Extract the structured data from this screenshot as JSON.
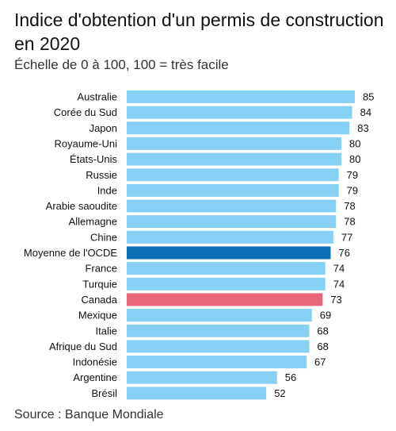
{
  "header": {
    "title": "Indice d'obtention d'un permis de construction en 2020",
    "subtitle": "Échelle de 0 à 100, 100 = très facile"
  },
  "footer": {
    "source": "Source : Banque Mondiale"
  },
  "colors": {
    "default_bar": "#86d0f3",
    "ocde_bar": "#0d6eb8",
    "canada_bar": "#e8687a"
  },
  "chart_data": {
    "type": "bar",
    "orientation": "horizontal",
    "title": "Indice d'obtention d'un permis de construction en 2020",
    "subtitle": "Échelle de 0 à 100, 100 = très facile",
    "xlim": [
      0,
      85
    ],
    "grid": false,
    "categories": [
      "Australie",
      "Corée du Sud",
      "Japon",
      "Royaume-Uni",
      "États-Unis",
      "Russie",
      "Inde",
      "Arabie saoudite",
      "Allemagne",
      "Chine",
      "Moyenne de l'OCDE",
      "France",
      "Turquie",
      "Canada",
      "Mexique",
      "Italie",
      "Afrique du Sud",
      "Indonésie",
      "Argentine",
      "Brésil"
    ],
    "values": [
      85,
      84,
      83,
      80,
      80,
      79,
      79,
      78,
      78,
      77,
      76,
      74,
      74,
      73,
      69,
      68,
      68,
      67,
      56,
      52
    ],
    "highlight": {
      "Moyenne de l'OCDE": "#0d6eb8",
      "Canada": "#e8687a"
    }
  }
}
